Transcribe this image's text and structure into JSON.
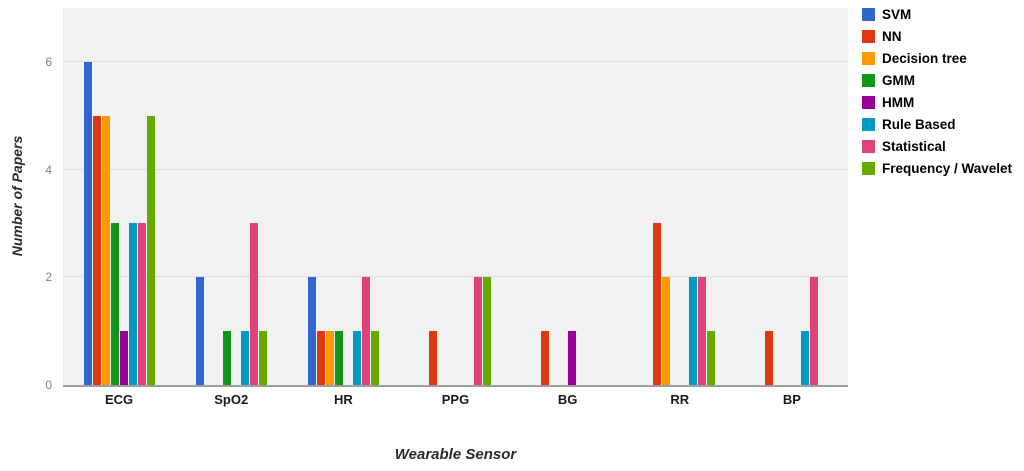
{
  "chart_data": {
    "type": "bar",
    "title": "",
    "xlabel": "Wearable Sensor",
    "ylabel": "Number of Papers",
    "categories": [
      "ECG",
      "SpO2",
      "HR",
      "PPG",
      "BG",
      "RR",
      "BP"
    ],
    "series": [
      {
        "name": "SVM",
        "color": "#3366cc",
        "values": [
          6,
          2,
          2,
          0,
          0,
          0,
          0
        ]
      },
      {
        "name": "NN",
        "color": "#dc3912",
        "values": [
          5,
          0,
          1,
          1,
          1,
          3,
          1
        ]
      },
      {
        "name": "Decision tree",
        "color": "#ff9900",
        "values": [
          5,
          0,
          1,
          0,
          0,
          2,
          0
        ]
      },
      {
        "name": "GMM",
        "color": "#109618",
        "values": [
          3,
          1,
          1,
          0,
          0,
          0,
          0
        ]
      },
      {
        "name": "HMM",
        "color": "#990099",
        "values": [
          1,
          0,
          0,
          0,
          1,
          0,
          0
        ]
      },
      {
        "name": "Rule Based",
        "color": "#0099c6",
        "values": [
          3,
          1,
          1,
          0,
          0,
          2,
          1
        ]
      },
      {
        "name": "Statistical",
        "color": "#dd4477",
        "values": [
          3,
          3,
          2,
          2,
          0,
          2,
          2
        ]
      },
      {
        "name": "Frequency / Wavelet",
        "color": "#66aa00",
        "values": [
          5,
          1,
          1,
          2,
          0,
          1,
          0
        ]
      }
    ],
    "yticks": [
      0,
      2,
      4,
      6
    ],
    "ylim": [
      0,
      7
    ],
    "grid": true,
    "legend_position": "right",
    "colors": {
      "plot_background": "#f1f1f1",
      "gridline": "#dedede",
      "axis_line": "#9e9e9e",
      "tick_label": "#7f7f7f",
      "text": "#000000"
    }
  }
}
